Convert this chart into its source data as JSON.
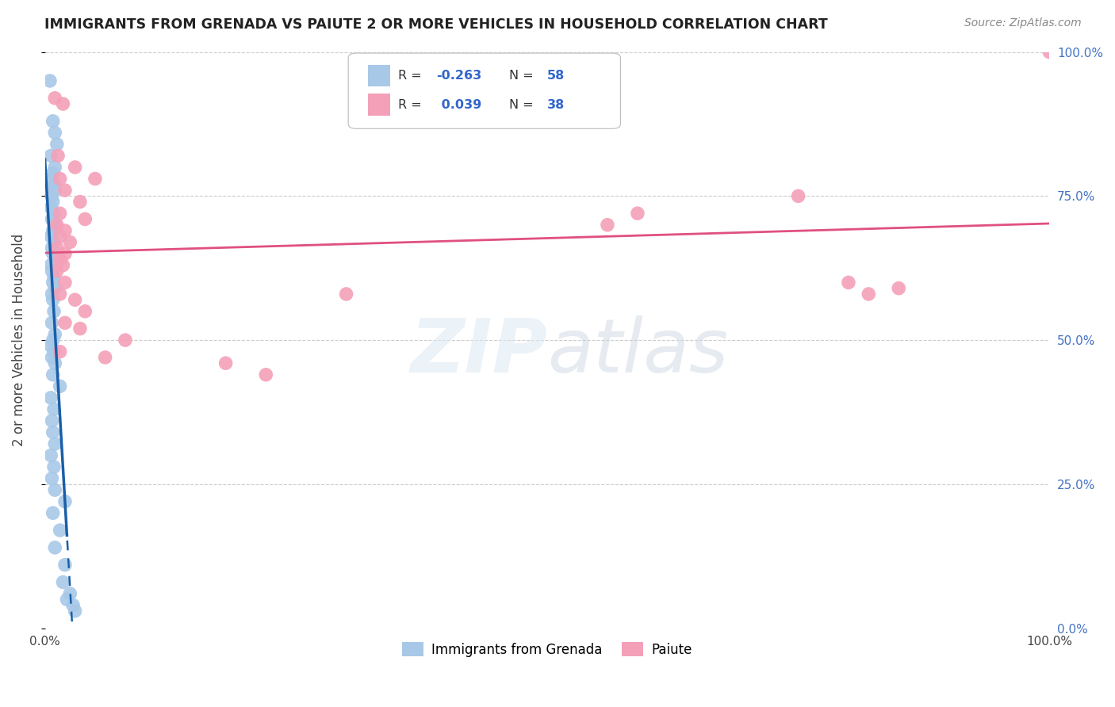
{
  "title": "IMMIGRANTS FROM GRENADA VS PAIUTE 2 OR MORE VEHICLES IN HOUSEHOLD CORRELATION CHART",
  "source": "Source: ZipAtlas.com",
  "ylabel": "2 or more Vehicles in Household",
  "legend_label1": "Immigrants from Grenada",
  "legend_label2": "Paiute",
  "R1": -0.263,
  "N1": 58,
  "R2": 0.039,
  "N2": 38,
  "color_blue": "#a8c8e8",
  "color_pink": "#f4a0b8",
  "trendline_blue": "#1a5fa8",
  "trendline_pink": "#e05080",
  "xlim": [
    0,
    1.0
  ],
  "ylim": [
    0,
    1.0
  ],
  "blue_scatter": [
    [
      0.005,
      0.95
    ],
    [
      0.008,
      0.88
    ],
    [
      0.01,
      0.86
    ],
    [
      0.012,
      0.84
    ],
    [
      0.006,
      0.82
    ],
    [
      0.01,
      0.8
    ],
    [
      0.008,
      0.79
    ],
    [
      0.006,
      0.78
    ],
    [
      0.009,
      0.77
    ],
    [
      0.01,
      0.76
    ],
    [
      0.007,
      0.75
    ],
    [
      0.008,
      0.74
    ],
    [
      0.006,
      0.73
    ],
    [
      0.009,
      0.72
    ],
    [
      0.007,
      0.71
    ],
    [
      0.01,
      0.7
    ],
    [
      0.008,
      0.69
    ],
    [
      0.006,
      0.68
    ],
    [
      0.009,
      0.67
    ],
    [
      0.007,
      0.66
    ],
    [
      0.008,
      0.65
    ],
    [
      0.01,
      0.64
    ],
    [
      0.006,
      0.63
    ],
    [
      0.007,
      0.62
    ],
    [
      0.009,
      0.61
    ],
    [
      0.008,
      0.6
    ],
    [
      0.01,
      0.59
    ],
    [
      0.007,
      0.58
    ],
    [
      0.008,
      0.57
    ],
    [
      0.009,
      0.55
    ],
    [
      0.007,
      0.53
    ],
    [
      0.01,
      0.51
    ],
    [
      0.008,
      0.5
    ],
    [
      0.006,
      0.49
    ],
    [
      0.009,
      0.48
    ],
    [
      0.007,
      0.47
    ],
    [
      0.01,
      0.46
    ],
    [
      0.008,
      0.44
    ],
    [
      0.015,
      0.42
    ],
    [
      0.006,
      0.4
    ],
    [
      0.009,
      0.38
    ],
    [
      0.007,
      0.36
    ],
    [
      0.008,
      0.34
    ],
    [
      0.01,
      0.32
    ],
    [
      0.006,
      0.3
    ],
    [
      0.009,
      0.28
    ],
    [
      0.007,
      0.26
    ],
    [
      0.01,
      0.24
    ],
    [
      0.02,
      0.22
    ],
    [
      0.008,
      0.2
    ],
    [
      0.015,
      0.17
    ],
    [
      0.01,
      0.14
    ],
    [
      0.02,
      0.11
    ],
    [
      0.018,
      0.08
    ],
    [
      0.025,
      0.06
    ],
    [
      0.022,
      0.05
    ],
    [
      0.028,
      0.04
    ],
    [
      0.03,
      0.03
    ]
  ],
  "pink_scatter": [
    [
      0.01,
      0.92
    ],
    [
      0.018,
      0.91
    ],
    [
      0.013,
      0.82
    ],
    [
      0.03,
      0.8
    ],
    [
      0.015,
      0.78
    ],
    [
      0.05,
      0.78
    ],
    [
      0.02,
      0.76
    ],
    [
      0.035,
      0.74
    ],
    [
      0.015,
      0.72
    ],
    [
      0.04,
      0.71
    ],
    [
      0.012,
      0.7
    ],
    [
      0.02,
      0.69
    ],
    [
      0.015,
      0.68
    ],
    [
      0.025,
      0.67
    ],
    [
      0.012,
      0.66
    ],
    [
      0.02,
      0.65
    ],
    [
      0.015,
      0.64
    ],
    [
      0.018,
      0.63
    ],
    [
      0.012,
      0.62
    ],
    [
      0.02,
      0.6
    ],
    [
      0.015,
      0.58
    ],
    [
      0.03,
      0.57
    ],
    [
      0.04,
      0.55
    ],
    [
      0.02,
      0.53
    ],
    [
      0.035,
      0.52
    ],
    [
      0.08,
      0.5
    ],
    [
      0.015,
      0.48
    ],
    [
      0.06,
      0.47
    ],
    [
      0.18,
      0.46
    ],
    [
      0.22,
      0.44
    ],
    [
      0.3,
      0.58
    ],
    [
      0.56,
      0.7
    ],
    [
      0.59,
      0.72
    ],
    [
      0.75,
      0.75
    ],
    [
      0.8,
      0.6
    ],
    [
      0.82,
      0.58
    ],
    [
      0.85,
      0.59
    ],
    [
      1.0,
      1.0
    ]
  ],
  "blue_trendline_x": [
    0.0,
    0.03
  ],
  "blue_trendline_solid_end": 0.022,
  "pink_trendline_x": [
    0.0,
    1.0
  ],
  "watermark": "ZIPatlas"
}
